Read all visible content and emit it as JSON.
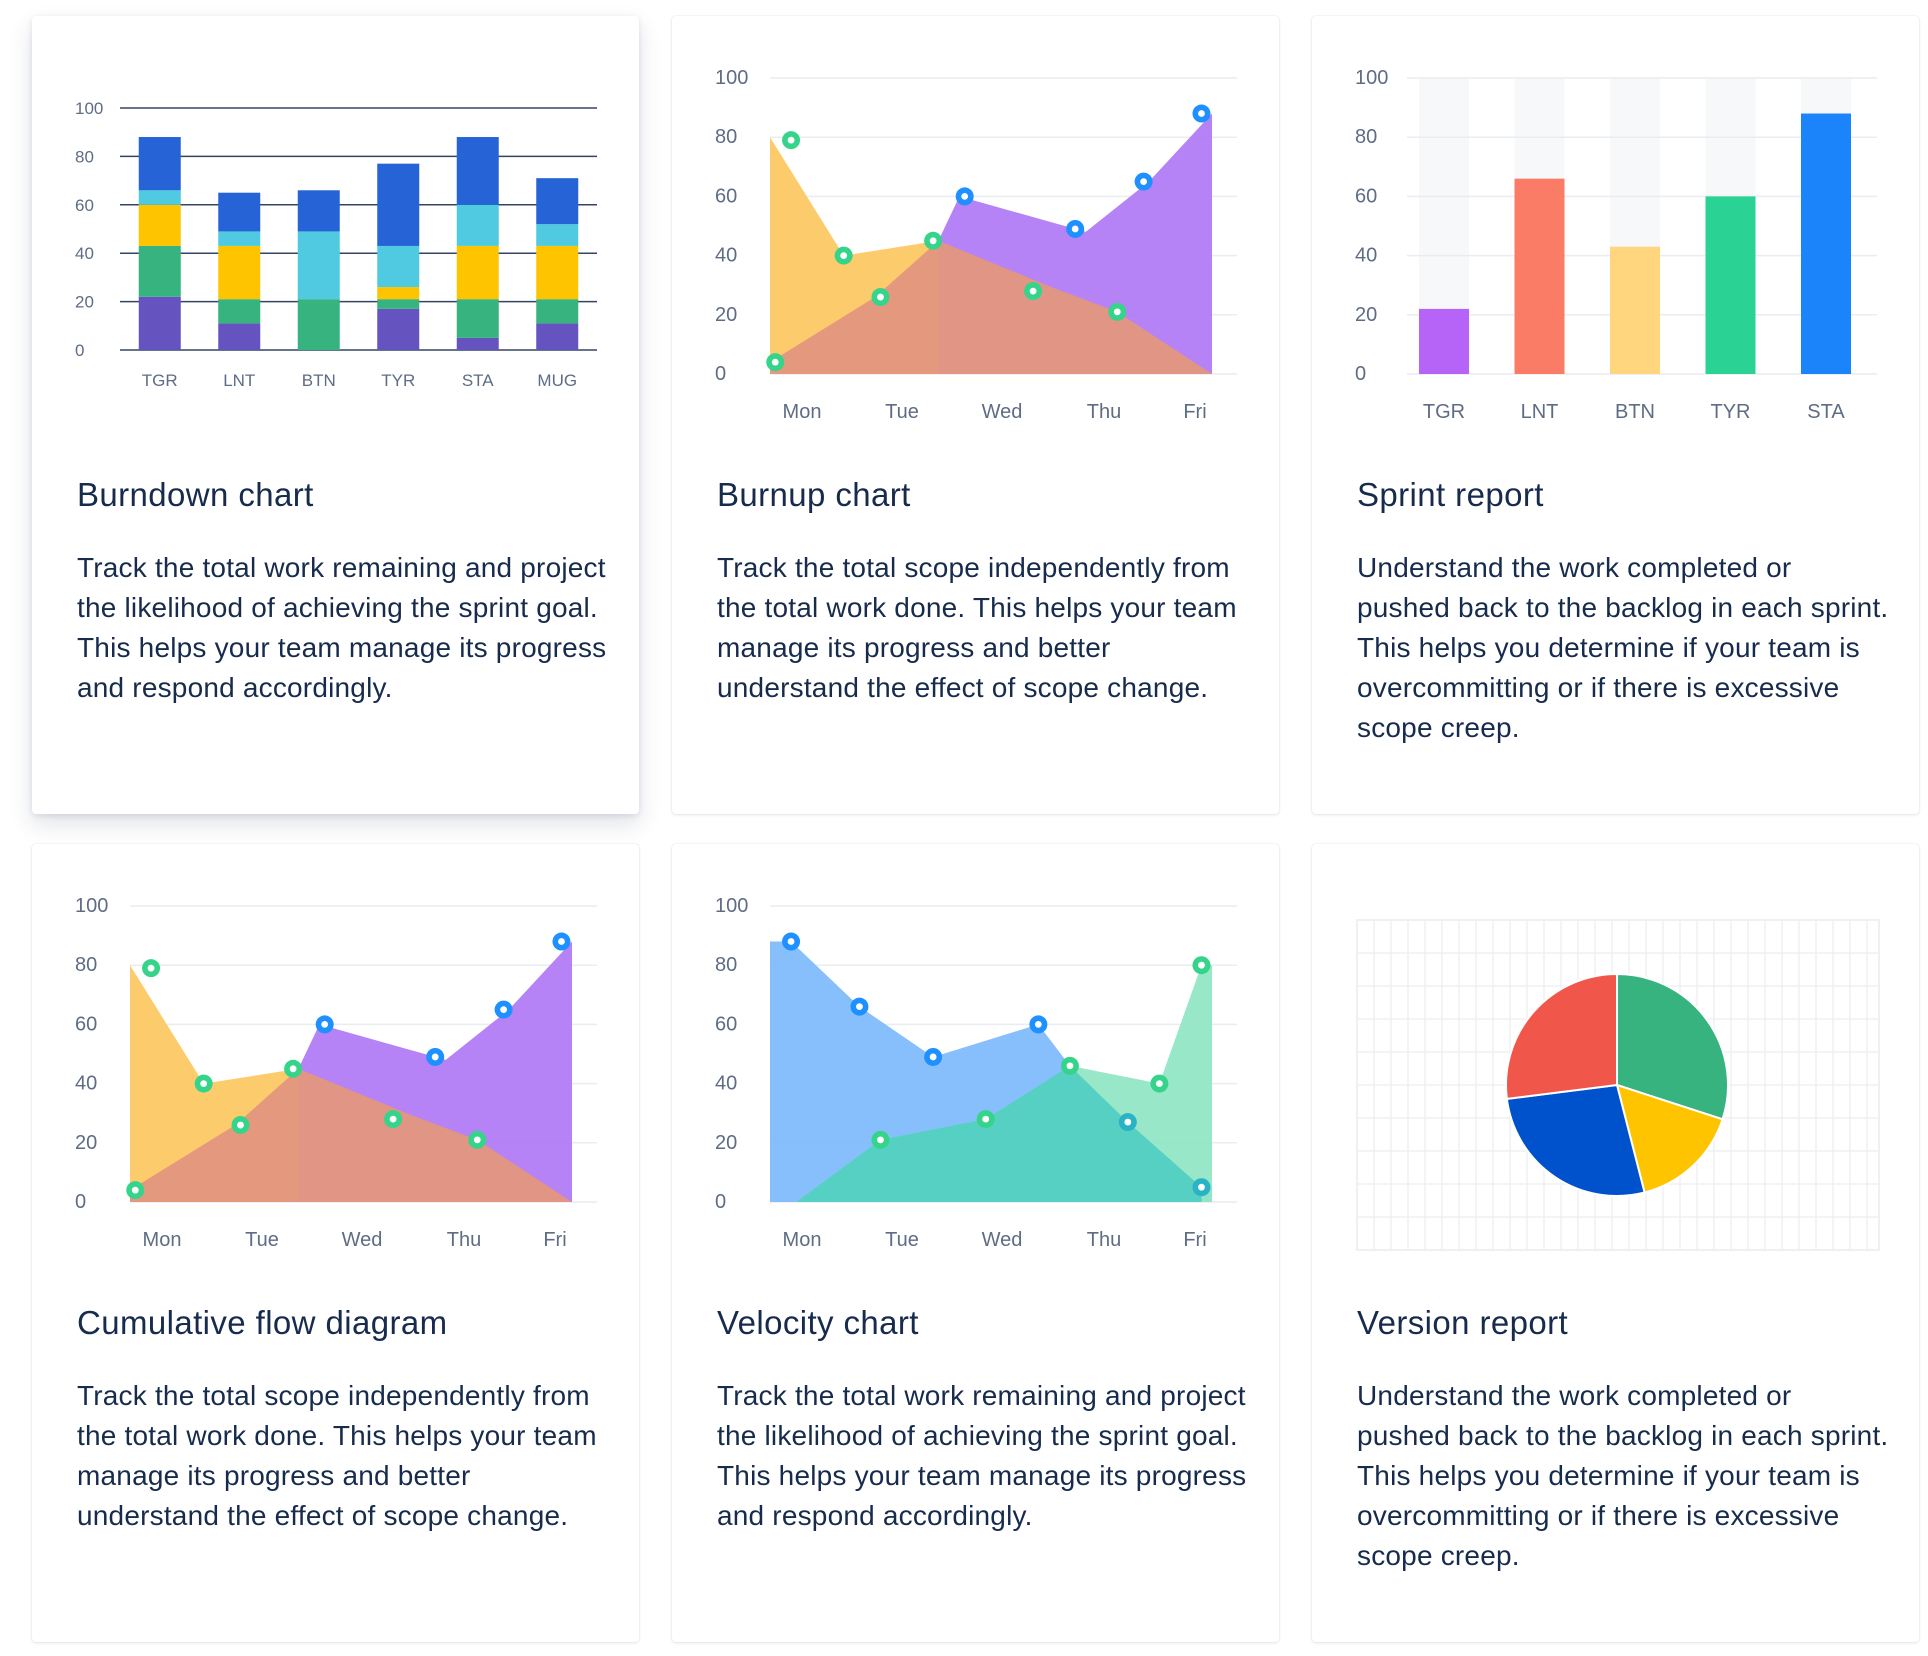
{
  "cards": [
    {
      "title": "Burndown chart",
      "description": "Track the total work remaining and project the likelihood of achieving the sprint goal. This helps your team manage its progress and respond accordingly."
    },
    {
      "title": "Burnup chart",
      "description": "Track the total scope independently from the total work done. This helps your team manage its progress and better understand the effect of scope change."
    },
    {
      "title": "Sprint report",
      "description": "Understand the work completed or pushed back to the backlog in each sprint. This helps you determine if your team is overcommitting or if there is excessive scope creep."
    },
    {
      "title": "Cumulative flow diagram",
      "description": "Track the total scope independently from the total work done. This helps your team manage its progress and better understand the effect of scope change."
    },
    {
      "title": "Velocity chart",
      "description": "Track the total work remaining and project the likelihood of achieving the sprint goal. This helps your team manage its progress and respond accordingly."
    },
    {
      "title": "Version report",
      "description": "Understand the work completed or pushed back to the backlog in each sprint. This helps you determine if your team is overcommitting or if there is excessive scope creep."
    }
  ],
  "chart_data": [
    {
      "type": "bar",
      "stacked": true,
      "categories": [
        "TGR",
        "LNT",
        "BTN",
        "TYR",
        "STA",
        "MUG"
      ],
      "yticks": [
        "0",
        "20",
        "40",
        "60",
        "80",
        "100"
      ],
      "ylim": [
        0,
        100
      ],
      "series": [
        {
          "name": "purple",
          "color": "#6554c0",
          "values": [
            22,
            11,
            0,
            17,
            5,
            11
          ]
        },
        {
          "name": "green",
          "color": "#36b37e",
          "values": [
            21,
            10,
            21,
            4,
            16,
            10
          ]
        },
        {
          "name": "yellow",
          "color": "#ffc400",
          "values": [
            17,
            22,
            0,
            5,
            22,
            22
          ]
        },
        {
          "name": "teal",
          "color": "#4fcae1",
          "values": [
            6,
            6,
            28,
            17,
            17,
            9
          ]
        },
        {
          "name": "blue",
          "color": "#2563d6",
          "values": [
            22,
            16,
            17,
            34,
            28,
            19
          ]
        }
      ]
    },
    {
      "type": "area",
      "categories": [
        "Mon",
        "Tue",
        "Wed",
        "Thu",
        "Fri"
      ],
      "yticks": [
        "0",
        "20",
        "40",
        "60",
        "80",
        "100"
      ],
      "ylim": [
        0,
        100
      ],
      "series": [
        {
          "name": "yellow",
          "color": "#fcc964",
          "points": [
            [
              0,
              80
            ],
            [
              0.7,
              40
            ],
            [
              1.6,
              45
            ],
            [
              2.7,
              29
            ],
            [
              3.3,
              21
            ],
            [
              4.2,
              0
            ]
          ]
        },
        {
          "name": "purple",
          "color": "#b17cf4",
          "points": [
            [
              1.6,
              45
            ],
            [
              1.8,
              60
            ],
            [
              3.0,
              48
            ],
            [
              3.6,
              65
            ],
            [
              4.2,
              88
            ]
          ]
        },
        {
          "name": "orange",
          "color": "#e3967f",
          "points": [
            [
              0,
              4
            ],
            [
              1.0,
              26
            ],
            [
              1.6,
              45
            ],
            [
              2.7,
              29
            ],
            [
              3.3,
              21
            ],
            [
              4.2,
              0
            ]
          ]
        }
      ],
      "markers": [
        {
          "x": 0.2,
          "y": 79,
          "color": "#36d48b"
        },
        {
          "x": 0.7,
          "y": 40,
          "color": "#36d48b"
        },
        {
          "x": 1.05,
          "y": 26,
          "color": "#36d48b"
        },
        {
          "x": 1.55,
          "y": 45,
          "color": "#36d48b"
        },
        {
          "x": 2.5,
          "y": 28,
          "color": "#36d48b"
        },
        {
          "x": 3.3,
          "y": 21,
          "color": "#36d48b"
        },
        {
          "x": 0.05,
          "y": 4,
          "color": "#36d48b"
        },
        {
          "x": 1.85,
          "y": 60,
          "color": "#1e90ff"
        },
        {
          "x": 2.9,
          "y": 49,
          "color": "#1e90ff"
        },
        {
          "x": 3.55,
          "y": 65,
          "color": "#1e90ff"
        },
        {
          "x": 4.1,
          "y": 88,
          "color": "#1e90ff"
        }
      ]
    },
    {
      "type": "bar",
      "categories": [
        "TGR",
        "LNT",
        "BTN",
        "TYR",
        "STA"
      ],
      "yticks": [
        "0",
        "20",
        "40",
        "60",
        "80",
        "100"
      ],
      "ylim": [
        0,
        100
      ],
      "values": [
        22,
        66,
        43,
        60,
        88
      ],
      "colors": [
        "#b564f7",
        "#fa7c66",
        "#ffd57e",
        "#2ad394",
        "#1b84fa"
      ]
    },
    {
      "type": "area",
      "categories": [
        "Mon",
        "Tue",
        "Wed",
        "Thu",
        "Fri"
      ],
      "yticks": [
        "0",
        "20",
        "40",
        "60",
        "80",
        "100"
      ],
      "ylim": [
        0,
        100
      ],
      "series": [
        {
          "name": "yellow",
          "color": "#fcc964",
          "points": [
            [
              0,
              80
            ],
            [
              0.7,
              40
            ],
            [
              1.6,
              45
            ],
            [
              2.7,
              29
            ],
            [
              3.3,
              21
            ],
            [
              4.2,
              0
            ]
          ]
        },
        {
          "name": "purple",
          "color": "#b17cf4",
          "points": [
            [
              1.6,
              45
            ],
            [
              1.8,
              60
            ],
            [
              3.0,
              48
            ],
            [
              3.6,
              65
            ],
            [
              4.2,
              88
            ]
          ]
        },
        {
          "name": "orange",
          "color": "#e3967f",
          "points": [
            [
              0,
              4
            ],
            [
              1.0,
              26
            ],
            [
              1.6,
              45
            ],
            [
              2.7,
              29
            ],
            [
              3.3,
              21
            ],
            [
              4.2,
              0
            ]
          ]
        }
      ],
      "markers": [
        {
          "x": 0.2,
          "y": 79,
          "color": "#36d48b"
        },
        {
          "x": 0.7,
          "y": 40,
          "color": "#36d48b"
        },
        {
          "x": 1.05,
          "y": 26,
          "color": "#36d48b"
        },
        {
          "x": 1.55,
          "y": 45,
          "color": "#36d48b"
        },
        {
          "x": 2.5,
          "y": 28,
          "color": "#36d48b"
        },
        {
          "x": 3.3,
          "y": 21,
          "color": "#36d48b"
        },
        {
          "x": 0.05,
          "y": 4,
          "color": "#36d48b"
        },
        {
          "x": 1.85,
          "y": 60,
          "color": "#1e90ff"
        },
        {
          "x": 2.9,
          "y": 49,
          "color": "#1e90ff"
        },
        {
          "x": 3.55,
          "y": 65,
          "color": "#1e90ff"
        },
        {
          "x": 4.1,
          "y": 88,
          "color": "#1e90ff"
        }
      ]
    },
    {
      "type": "area",
      "categories": [
        "Mon",
        "Tue",
        "Wed",
        "Thu",
        "Fri"
      ],
      "yticks": [
        "0",
        "20",
        "40",
        "60",
        "80",
        "100"
      ],
      "ylim": [
        0,
        100
      ],
      "series": [
        {
          "name": "blue",
          "color": "#80bcfb",
          "points": [
            [
              0,
              88
            ],
            [
              0.2,
              88
            ],
            [
              0.85,
              66
            ],
            [
              1.55,
              49
            ],
            [
              2.55,
              60
            ],
            [
              2.85,
              46
            ],
            [
              3.4,
              27
            ],
            [
              4.1,
              5
            ],
            [
              4.2,
              5
            ]
          ]
        },
        {
          "name": "green",
          "color": "#91e6c5",
          "points": [
            [
              0.25,
              0
            ],
            [
              1.05,
              21
            ],
            [
              2.05,
              28
            ],
            [
              2.85,
              46
            ],
            [
              3.7,
              40
            ],
            [
              4.1,
              80
            ],
            [
              4.2,
              80
            ]
          ]
        },
        {
          "name": "teal",
          "color": "#52cfc2",
          "points": [
            [
              0.25,
              0
            ],
            [
              1.05,
              21
            ],
            [
              2.05,
              28
            ],
            [
              2.85,
              46
            ],
            [
              3.4,
              27
            ],
            [
              4.1,
              5
            ]
          ]
        }
      ],
      "markers": [
        {
          "x": 0.2,
          "y": 88,
          "color": "#1e90ff"
        },
        {
          "x": 0.85,
          "y": 66,
          "color": "#1e90ff"
        },
        {
          "x": 1.55,
          "y": 49,
          "color": "#1e90ff"
        },
        {
          "x": 2.55,
          "y": 60,
          "color": "#1e90ff"
        },
        {
          "x": 1.05,
          "y": 21,
          "color": "#36d48b"
        },
        {
          "x": 2.05,
          "y": 28,
          "color": "#36d48b"
        },
        {
          "x": 2.85,
          "y": 46,
          "color": "#36d48b"
        },
        {
          "x": 3.7,
          "y": 40,
          "color": "#36d48b"
        },
        {
          "x": 4.1,
          "y": 80,
          "color": "#36d48b"
        },
        {
          "x": 3.4,
          "y": 27,
          "color": "#2ab3c6"
        },
        {
          "x": 4.1,
          "y": 5,
          "color": "#2ab3c6"
        }
      ]
    },
    {
      "type": "pie",
      "slices": [
        {
          "name": "green",
          "value": 30,
          "color": "#36b37e"
        },
        {
          "name": "yellow",
          "value": 16,
          "color": "#ffc400"
        },
        {
          "name": "blue",
          "value": 27,
          "color": "#0052cc"
        },
        {
          "name": "red",
          "value": 27,
          "color": "#f0574a"
        }
      ]
    }
  ]
}
